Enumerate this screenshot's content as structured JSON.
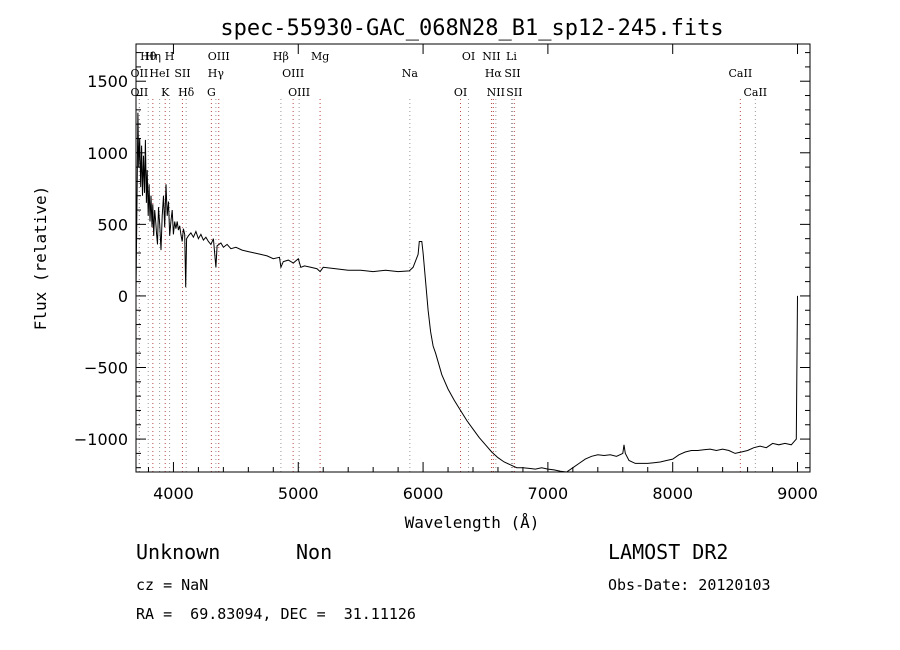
{
  "chart_data": {
    "type": "line",
    "title": "spec-55930-GAC_068N28_B1_sp12-245.fits",
    "xlabel": "Wavelength (Å)",
    "ylabel": "Flux (relative)",
    "xlim": [
      3700,
      9100
    ],
    "ylim": [
      -1230,
      1760
    ],
    "xticks": [
      4000,
      5000,
      6000,
      7000,
      8000,
      9000
    ],
    "yticks": [
      -1000,
      -500,
      0,
      500,
      1000,
      1500
    ],
    "grid": false,
    "series": [
      {
        "values": [
          [
            3700,
            20
          ],
          [
            3710,
            800
          ],
          [
            3715,
            1280
          ],
          [
            3722,
            900
          ],
          [
            3730,
            1100
          ],
          [
            3738,
            760
          ],
          [
            3745,
            1050
          ],
          [
            3752,
            700
          ],
          [
            3760,
            980
          ],
          [
            3768,
            720
          ],
          [
            3775,
            1090
          ],
          [
            3783,
            650
          ],
          [
            3790,
            880
          ],
          [
            3798,
            560
          ],
          [
            3805,
            780
          ],
          [
            3812,
            520
          ],
          [
            3820,
            700
          ],
          [
            3828,
            480
          ],
          [
            3835,
            640
          ],
          [
            3842,
            420
          ],
          [
            3850,
            600
          ],
          [
            3858,
            520
          ],
          [
            3865,
            430
          ],
          [
            3872,
            360
          ],
          [
            3880,
            620
          ],
          [
            3890,
            500
          ],
          [
            3900,
            320
          ],
          [
            3910,
            560
          ],
          [
            3920,
            700
          ],
          [
            3930,
            480
          ],
          [
            3940,
            780
          ],
          [
            3950,
            560
          ],
          [
            3960,
            660
          ],
          [
            3970,
            420
          ],
          [
            3980,
            520
          ],
          [
            3990,
            600
          ],
          [
            4000,
            430
          ],
          [
            4010,
            520
          ],
          [
            4020,
            470
          ],
          [
            4030,
            520
          ],
          [
            4040,
            460
          ],
          [
            4050,
            490
          ],
          [
            4060,
            430
          ],
          [
            4070,
            380
          ],
          [
            4080,
            470
          ],
          [
            4090,
            430
          ],
          [
            4098,
            60
          ],
          [
            4105,
            400
          ],
          [
            4120,
            420
          ],
          [
            4140,
            440
          ],
          [
            4160,
            410
          ],
          [
            4180,
            450
          ],
          [
            4200,
            400
          ],
          [
            4220,
            430
          ],
          [
            4240,
            390
          ],
          [
            4260,
            410
          ],
          [
            4280,
            380
          ],
          [
            4300,
            360
          ],
          [
            4320,
            400
          ],
          [
            4340,
            200
          ],
          [
            4350,
            350
          ],
          [
            4380,
            370
          ],
          [
            4400,
            340
          ],
          [
            4430,
            360
          ],
          [
            4460,
            330
          ],
          [
            4500,
            340
          ],
          [
            4550,
            320
          ],
          [
            4600,
            310
          ],
          [
            4650,
            300
          ],
          [
            4700,
            290
          ],
          [
            4750,
            280
          ],
          [
            4800,
            260
          ],
          [
            4850,
            270
          ],
          [
            4861,
            200
          ],
          [
            4880,
            240
          ],
          [
            4920,
            250
          ],
          [
            4960,
            230
          ],
          [
            5000,
            260
          ],
          [
            5020,
            200
          ],
          [
            5050,
            210
          ],
          [
            5100,
            200
          ],
          [
            5150,
            190
          ],
          [
            5175,
            170
          ],
          [
            5200,
            200
          ],
          [
            5300,
            190
          ],
          [
            5400,
            180
          ],
          [
            5500,
            180
          ],
          [
            5600,
            170
          ],
          [
            5700,
            180
          ],
          [
            5800,
            170
          ],
          [
            5890,
            175
          ],
          [
            5920,
            200
          ],
          [
            5960,
            290
          ],
          [
            5970,
            380
          ],
          [
            5990,
            380
          ],
          [
            6000,
            300
          ],
          [
            6020,
            100
          ],
          [
            6040,
            -100
          ],
          [
            6060,
            -250
          ],
          [
            6080,
            -350
          ],
          [
            6100,
            -400
          ],
          [
            6150,
            -550
          ],
          [
            6200,
            -650
          ],
          [
            6250,
            -730
          ],
          [
            6300,
            -800
          ],
          [
            6350,
            -870
          ],
          [
            6400,
            -930
          ],
          [
            6450,
            -990
          ],
          [
            6500,
            -1040
          ],
          [
            6550,
            -1090
          ],
          [
            6600,
            -1130
          ],
          [
            6650,
            -1160
          ],
          [
            6700,
            -1180
          ],
          [
            6750,
            -1200
          ],
          [
            6800,
            -1200
          ],
          [
            6850,
            -1205
          ],
          [
            6900,
            -1210
          ],
          [
            6950,
            -1200
          ],
          [
            7000,
            -1210
          ],
          [
            7050,
            -1215
          ],
          [
            7100,
            -1225
          ],
          [
            7150,
            -1230
          ],
          [
            7200,
            -1200
          ],
          [
            7250,
            -1170
          ],
          [
            7300,
            -1140
          ],
          [
            7350,
            -1120
          ],
          [
            7400,
            -1110
          ],
          [
            7450,
            -1115
          ],
          [
            7500,
            -1110
          ],
          [
            7550,
            -1120
          ],
          [
            7600,
            -1100
          ],
          [
            7610,
            -1040
          ],
          [
            7620,
            -1100
          ],
          [
            7650,
            -1150
          ],
          [
            7700,
            -1170
          ],
          [
            7750,
            -1170
          ],
          [
            7800,
            -1170
          ],
          [
            7850,
            -1165
          ],
          [
            7900,
            -1160
          ],
          [
            7950,
            -1150
          ],
          [
            8000,
            -1140
          ],
          [
            8050,
            -1110
          ],
          [
            8100,
            -1090
          ],
          [
            8150,
            -1080
          ],
          [
            8200,
            -1080
          ],
          [
            8250,
            -1075
          ],
          [
            8300,
            -1070
          ],
          [
            8350,
            -1080
          ],
          [
            8400,
            -1070
          ],
          [
            8450,
            -1080
          ],
          [
            8500,
            -1100
          ],
          [
            8550,
            -1090
          ],
          [
            8600,
            -1080
          ],
          [
            8650,
            -1060
          ],
          [
            8700,
            -1050
          ],
          [
            8750,
            -1060
          ],
          [
            8800,
            -1030
          ],
          [
            8850,
            -1040
          ],
          [
            8900,
            -1030
          ],
          [
            8950,
            -1040
          ],
          [
            8990,
            -1000
          ],
          [
            8995,
            -500
          ],
          [
            9000,
            0
          ]
        ]
      }
    ],
    "line_markers": [
      {
        "labels": [
          "Hθ"
        ],
        "x": 3798
      },
      {
        "labels": [
          "OII"
        ],
        "x": 3727
      },
      {
        "labels": [
          "OII"
        ],
        "x": 3727
      },
      {
        "labels": [
          "Hη"
        ],
        "x": 3835
      },
      {
        "labels": [
          "HeI"
        ],
        "x": 3889
      },
      {
        "labels": [
          "K"
        ],
        "x": 3934
      },
      {
        "labels": [
          "H"
        ],
        "x": 3969
      },
      {
        "labels": [
          "SII"
        ],
        "x": 4072
      },
      {
        "labels": [
          "Hδ"
        ],
        "x": 4102
      },
      {
        "labels": [
          "OIII"
        ],
        "x": 4363
      },
      {
        "labels": [
          "Hγ"
        ],
        "x": 4340
      },
      {
        "labels": [
          "G"
        ],
        "x": 4304
      },
      {
        "labels": [
          "Hβ"
        ],
        "x": 4861
      },
      {
        "labels": [
          "OIII"
        ],
        "x": 4959
      },
      {
        "labels": [
          "OIII"
        ],
        "x": 5007
      },
      {
        "labels": [
          "Mg"
        ],
        "x": 5175
      },
      {
        "labels": [
          "Na"
        ],
        "x": 5894
      },
      {
        "labels": [
          "OI"
        ],
        "x": 6300
      },
      {
        "labels": [
          "OI"
        ],
        "x": 6364
      },
      {
        "labels": [
          "Hα"
        ],
        "x": 6563
      },
      {
        "labels": [
          "NII"
        ],
        "x": 6583
      },
      {
        "labels": [
          "NII"
        ],
        "x": 6548
      },
      {
        "labels": [
          "SII"
        ],
        "x": 6716
      },
      {
        "labels": [
          "SII"
        ],
        "x": 6731
      },
      {
        "labels": [
          "Li"
        ],
        "x": 6708
      },
      {
        "labels": [
          "CaII"
        ],
        "x": 8542
      },
      {
        "labels": [
          "CaII"
        ],
        "x": 8662
      }
    ]
  },
  "info": {
    "class": "Unknown",
    "subclass": "Non",
    "cz": "cz = NaN",
    "radec": "RA =  69.83094, DEC =  31.11126",
    "survey": "LAMOST DR2",
    "obsdate": "Obs-Date: 20120103"
  }
}
